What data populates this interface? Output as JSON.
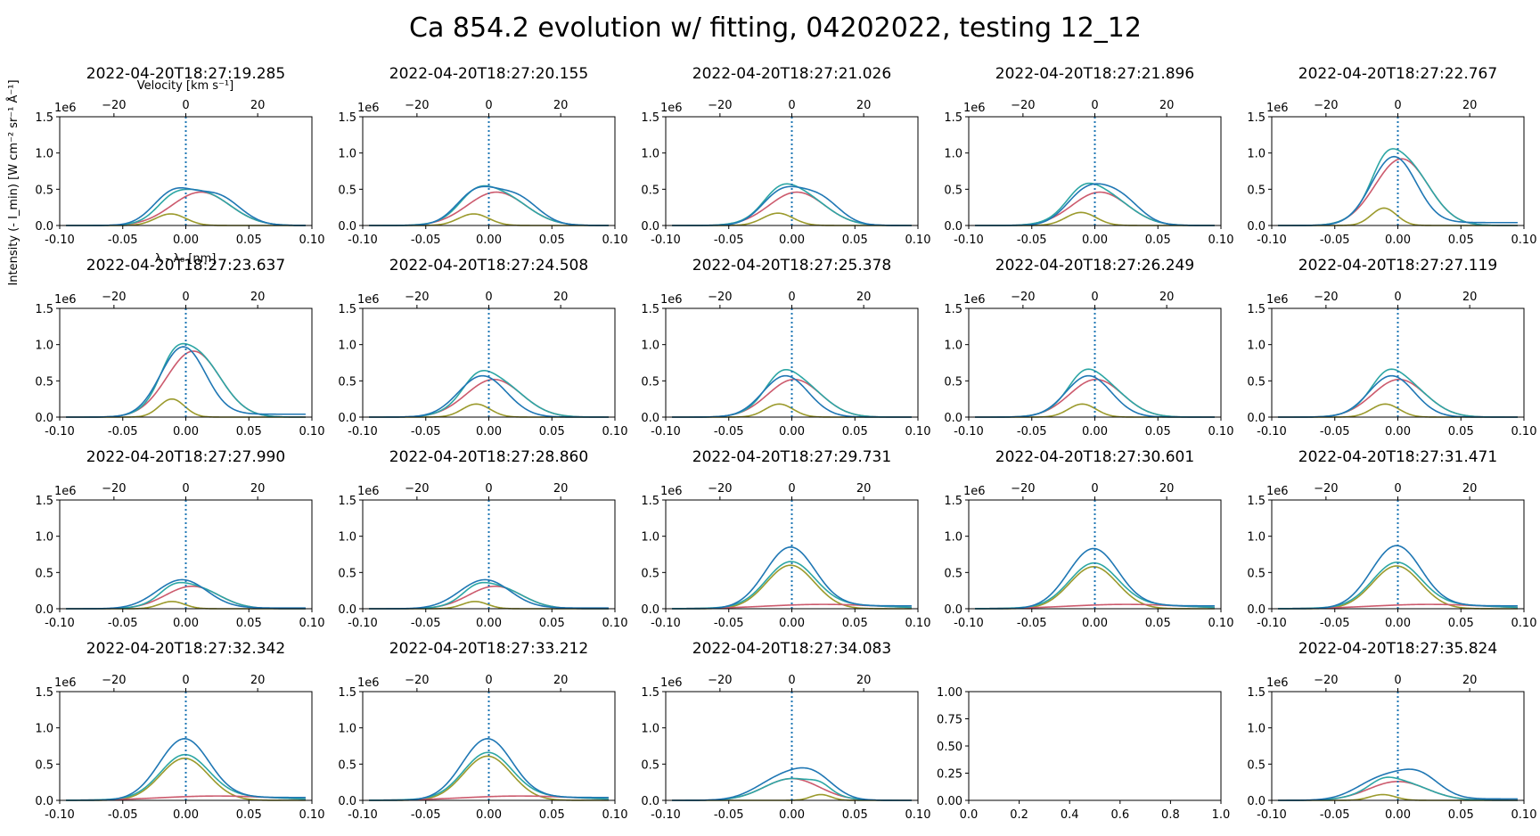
{
  "chart_data": {
    "type": "line",
    "title": "Ca 854.2 evolution w/ fitting, 04202022, testing 12_12",
    "xlabel": "λ - λ₀ [nm]",
    "top_xlabel": "Velocity [km s⁻¹]",
    "ylabel": "Intensity (- I_min) [W cm⁻² sr⁻¹ Å⁻¹]",
    "y_offset_text": "1e6",
    "xlim": [
      -0.1,
      0.1
    ],
    "ylim": [
      0,
      1.5
    ],
    "x_ticks": [
      "-0.10",
      "-0.05",
      "0.00",
      "0.05",
      "0.10"
    ],
    "y_ticks": [
      "0.0",
      "0.5",
      "1.0",
      "1.5"
    ],
    "top_ticks": [
      "−20",
      "0",
      "20"
    ],
    "grid": false,
    "colors": {
      "observed": "#1f77b4",
      "fit_total": "#2ca6a4",
      "component_red": "#cc5a6d",
      "component_olive": "#9b9a2c"
    },
    "panels": [
      {
        "timestamp": "2022-04-20T18:27:19.285",
        "obs": {
          "peaks": [
            [
              -0.01,
              0.44,
              0.016
            ],
            [
              0.025,
              0.4,
              0.018
            ]
          ],
          "tail": 0.0
        },
        "red": [
          0.012,
          0.46,
          0.023
        ],
        "olive": [
          -0.012,
          0.16,
          0.012
        ]
      },
      {
        "timestamp": "2022-04-20T18:27:20.155",
        "obs": {
          "peaks": [
            [
              -0.01,
              0.45,
              0.016
            ],
            [
              0.022,
              0.38,
              0.017
            ]
          ],
          "tail": 0.0
        },
        "red": [
          0.006,
          0.46,
          0.023
        ],
        "olive": [
          -0.012,
          0.16,
          0.012
        ]
      },
      {
        "timestamp": "2022-04-20T18:27:21.026",
        "obs": {
          "peaks": [
            [
              -0.008,
              0.45,
              0.016
            ],
            [
              0.022,
              0.36,
              0.016
            ]
          ],
          "tail": 0.0
        },
        "red": [
          0.004,
          0.46,
          0.022
        ],
        "olive": [
          -0.011,
          0.17,
          0.012
        ]
      },
      {
        "timestamp": "2022-04-20T18:27:21.896",
        "obs": {
          "peaks": [
            [
              -0.007,
              0.45,
              0.016
            ],
            [
              0.02,
              0.36,
              0.016
            ]
          ],
          "tail": 0.0
        },
        "red": [
          0.004,
          0.46,
          0.022
        ],
        "olive": [
          -0.011,
          0.18,
          0.012
        ]
      },
      {
        "timestamp": "2022-04-20T18:27:22.767",
        "obs": {
          "peaks": [
            [
              -0.003,
              0.95,
              0.018
            ]
          ],
          "tail": 0.04
        },
        "red": [
          0.003,
          0.92,
          0.021
        ],
        "olive": [
          -0.011,
          0.24,
          0.01
        ]
      },
      {
        "timestamp": "2022-04-20T18:27:23.637",
        "obs": {
          "peaks": [
            [
              -0.002,
              0.97,
              0.018
            ]
          ],
          "tail": 0.04
        },
        "red": [
          0.006,
          0.91,
          0.021
        ],
        "olive": [
          -0.011,
          0.25,
          0.01
        ]
      },
      {
        "timestamp": "2022-04-20T18:27:24.508",
        "obs": {
          "peaks": [
            [
              -0.005,
              0.57,
              0.019
            ]
          ],
          "tail": 0.0
        },
        "red": [
          0.004,
          0.52,
          0.022
        ],
        "olive": [
          -0.01,
          0.18,
          0.011
        ]
      },
      {
        "timestamp": "2022-04-20T18:27:25.378",
        "obs": {
          "peaks": [
            [
              -0.005,
              0.57,
              0.018
            ]
          ],
          "tail": 0.0
        },
        "red": [
          0.002,
          0.52,
          0.021
        ],
        "olive": [
          -0.01,
          0.18,
          0.011
        ]
      },
      {
        "timestamp": "2022-04-20T18:27:26.249",
        "obs": {
          "peaks": [
            [
              -0.005,
              0.57,
              0.018
            ]
          ],
          "tail": 0.0
        },
        "red": [
          0.001,
          0.52,
          0.021
        ],
        "olive": [
          -0.01,
          0.18,
          0.011
        ]
      },
      {
        "timestamp": "2022-04-20T18:27:27.119",
        "obs": {
          "peaks": [
            [
              -0.005,
              0.57,
              0.018
            ]
          ],
          "tail": 0.0
        },
        "red": [
          0.001,
          0.52,
          0.021
        ],
        "olive": [
          -0.01,
          0.18,
          0.011
        ]
      },
      {
        "timestamp": "2022-04-20T18:27:27.990",
        "obs": {
          "peaks": [
            [
              -0.003,
              0.4,
              0.02
            ]
          ],
          "tail": 0.01
        },
        "red": [
          0.005,
          0.31,
          0.021
        ],
        "olive": [
          -0.011,
          0.1,
          0.01
        ]
      },
      {
        "timestamp": "2022-04-20T18:27:28.860",
        "obs": {
          "peaks": [
            [
              -0.003,
              0.4,
              0.02
            ]
          ],
          "tail": 0.01
        },
        "red": [
          0.005,
          0.31,
          0.021
        ],
        "olive": [
          -0.011,
          0.1,
          0.01
        ]
      },
      {
        "timestamp": "2022-04-20T18:27:29.731",
        "obs": {
          "peaks": [
            [
              -0.001,
              0.85,
              0.02
            ]
          ],
          "tail": 0.04
        },
        "red": [
          0.025,
          0.06,
          0.045
        ],
        "olive": [
          -0.001,
          0.6,
          0.019
        ]
      },
      {
        "timestamp": "2022-04-20T18:27:30.601",
        "obs": {
          "peaks": [
            [
              -0.001,
              0.83,
              0.02
            ]
          ],
          "tail": 0.04
        },
        "red": [
          0.025,
          0.06,
          0.045
        ],
        "olive": [
          -0.001,
          0.58,
          0.019
        ]
      },
      {
        "timestamp": "2022-04-20T18:27:31.471",
        "obs": {
          "peaks": [
            [
              -0.001,
              0.87,
              0.02
            ]
          ],
          "tail": 0.04
        },
        "red": [
          0.025,
          0.06,
          0.045
        ],
        "olive": [
          -0.001,
          0.59,
          0.019
        ]
      },
      {
        "timestamp": "2022-04-20T18:27:32.342",
        "obs": {
          "peaks": [
            [
              -0.001,
              0.85,
              0.02
            ]
          ],
          "tail": 0.04
        },
        "red": [
          0.025,
          0.06,
          0.045
        ],
        "olive": [
          -0.001,
          0.58,
          0.019
        ]
      },
      {
        "timestamp": "2022-04-20T18:27:33.212",
        "obs": {
          "peaks": [
            [
              -0.001,
              0.85,
              0.02
            ]
          ],
          "tail": 0.04
        },
        "red": [
          0.025,
          0.06,
          0.045
        ],
        "olive": [
          -0.001,
          0.61,
          0.019
        ]
      },
      {
        "timestamp": "2022-04-20T18:27:34.083",
        "obs": {
          "peaks": [
            [
              -0.008,
              0.3,
              0.02
            ],
            [
              0.018,
              0.28,
              0.016
            ]
          ],
          "tail": 0.0
        },
        "red": [
          0.0,
          0.3,
          0.022
        ],
        "olive": [
          0.023,
          0.08,
          0.008
        ]
      },
      {
        "timestamp": "",
        "empty": true,
        "x_ticks": [
          "0.0",
          "0.2",
          "0.4",
          "0.6",
          "0.8",
          "1.0"
        ],
        "y_ticks": [
          "0.00",
          "0.25",
          "0.50",
          "0.75",
          "1.00"
        ]
      },
      {
        "timestamp": "2022-04-20T18:27:35.824",
        "obs": {
          "peaks": [
            [
              -0.012,
              0.3,
              0.02
            ],
            [
              0.018,
              0.3,
              0.016
            ]
          ],
          "tail": 0.02
        },
        "red": [
          0.0,
          0.26,
          0.023
        ],
        "olive": [
          -0.012,
          0.08,
          0.01
        ]
      }
    ]
  }
}
